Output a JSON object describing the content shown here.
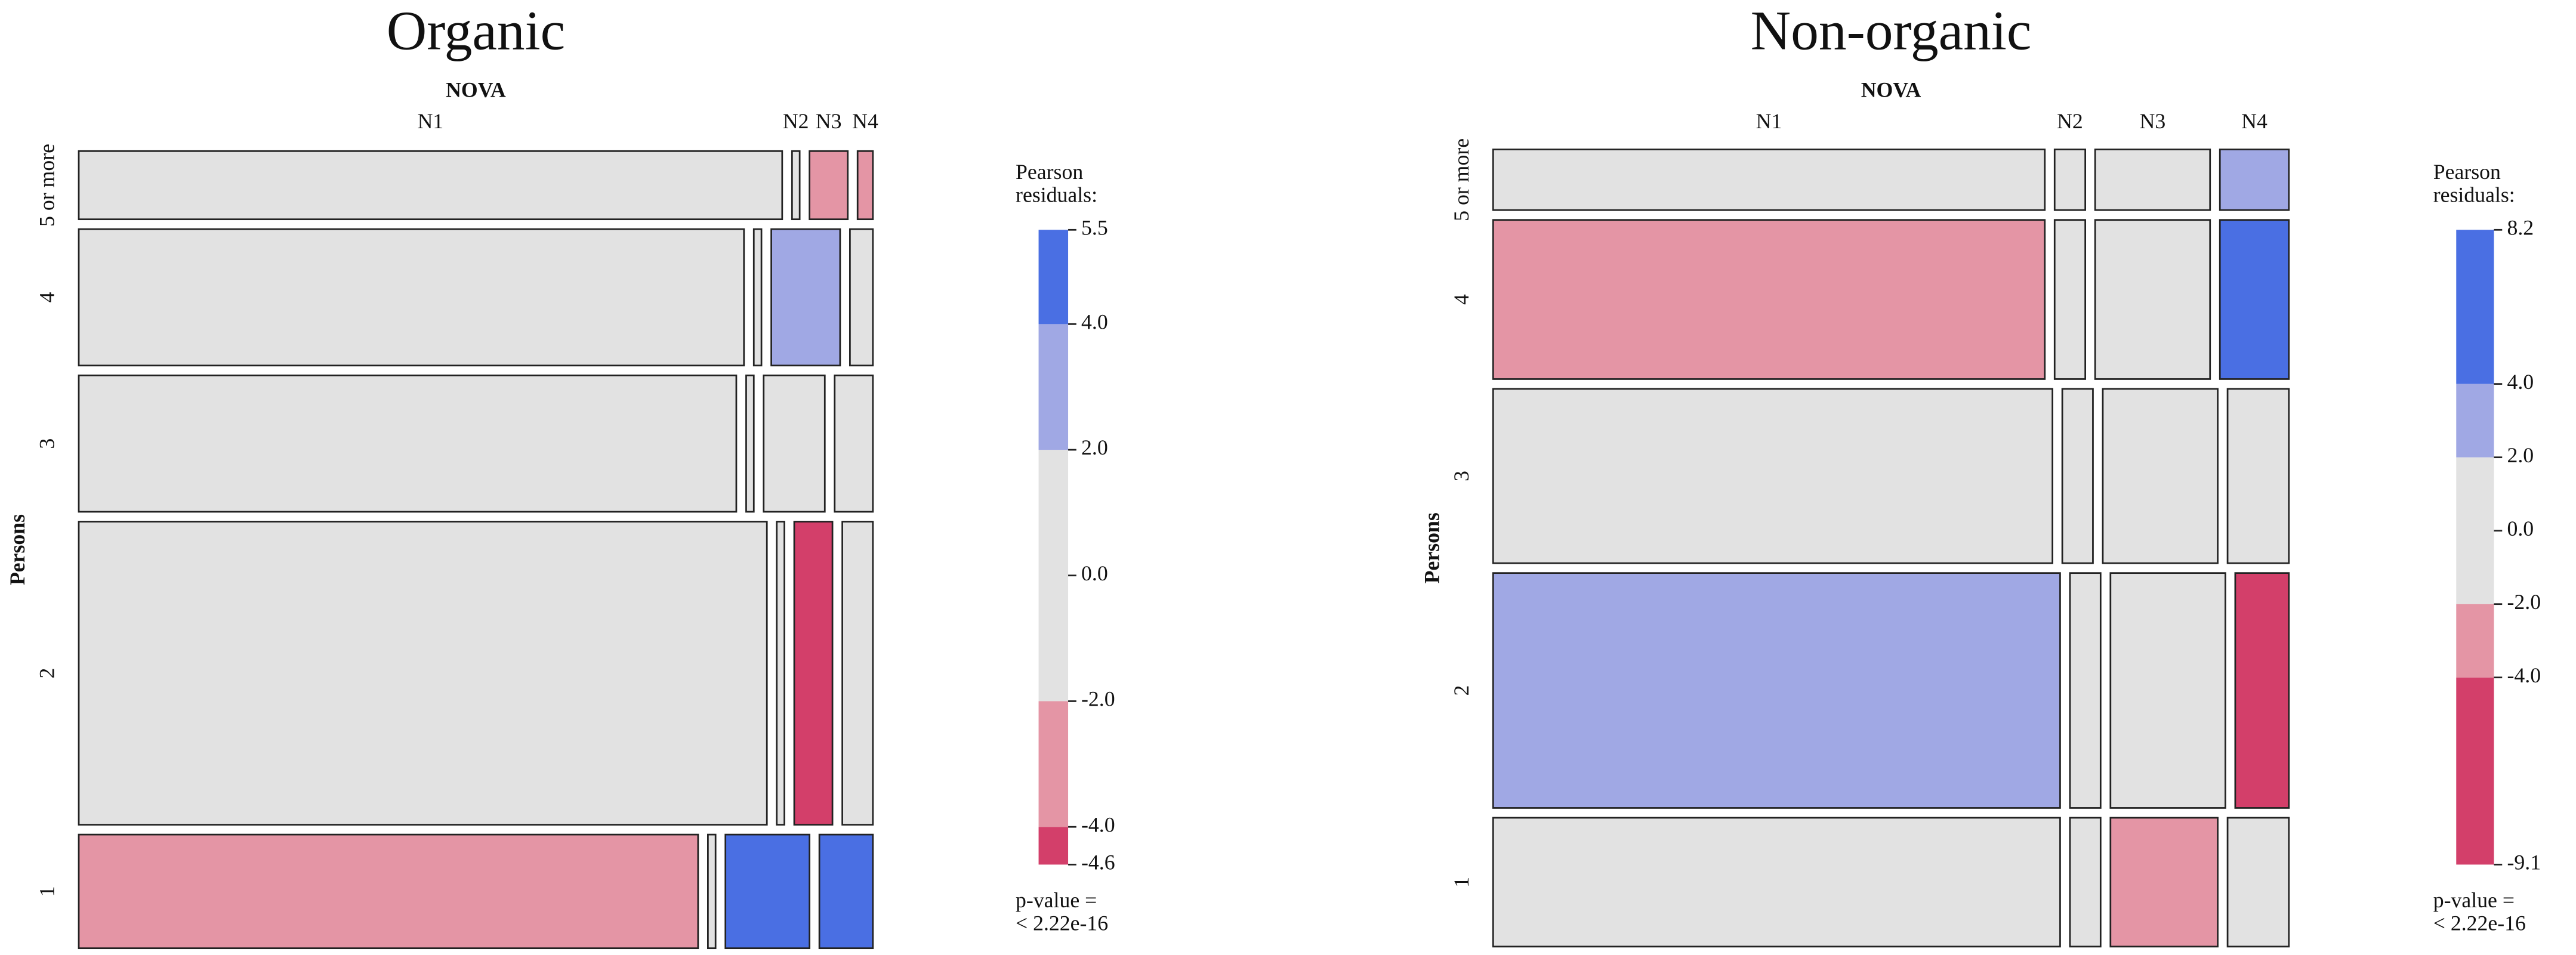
{
  "chart_data": [
    {
      "type": "mosaic",
      "title": "Organic",
      "x_label": "NOVA",
      "y_label": "Persons",
      "columns": [
        "N1",
        "N2",
        "N3",
        "N4"
      ],
      "rows": [
        "5 or more",
        "4",
        "3",
        "2",
        "1"
      ],
      "row_shares": [
        9,
        18,
        18,
        40,
        15
      ],
      "cell_shares": [
        [
          92,
          1,
          5,
          2
        ],
        [
          87,
          1,
          9,
          3
        ],
        [
          86,
          1,
          8,
          5
        ],
        [
          90,
          1,
          5,
          4
        ],
        [
          81,
          1,
          11,
          7
        ]
      ],
      "cell_colors": [
        [
          "#e2e2e2",
          "#e2e2e2",
          "#e495a5",
          "#e495a5"
        ],
        [
          "#e2e2e2",
          "#e2e2e2",
          "#a0a8e4",
          "#e2e2e2"
        ],
        [
          "#e2e2e2",
          "#e2e2e2",
          "#e2e2e2",
          "#e2e2e2"
        ],
        [
          "#e2e2e2",
          "#e2e2e2",
          "#d33f6a",
          "#e2e2e2"
        ],
        [
          "#e495a5",
          "#e2e2e2",
          "#4a6fe3",
          "#4a6fe3"
        ]
      ],
      "legend_title": [
        "Pearson",
        "residuals:"
      ],
      "legend_lim": [
        -4.6,
        5.5
      ],
      "legend_breaks": [
        -4.6,
        -4,
        -2,
        2,
        4,
        5.5
      ],
      "legend_colors": [
        "#d33f6a",
        "#e495a5",
        "#e2e2e2",
        "#a0a8e4",
        "#4a6fe3"
      ],
      "legend_ticks": [
        5.5,
        {
          "value": 4,
          "label": "4.0"
        },
        {
          "value": 2,
          "label": "2.0"
        },
        {
          "value": 0,
          "label": "0.0"
        },
        {
          "value": -2,
          "label": "-2.0"
        },
        {
          "value": -4,
          "label": "-4.0"
        },
        -4.6
      ],
      "note": [
        "p-value =",
        "< 2.22e-16"
      ]
    },
    {
      "type": "mosaic",
      "title": "Non-organic",
      "x_label": "NOVA",
      "y_label": "Persons",
      "columns": [
        "N1",
        "N2",
        "N3",
        "N4"
      ],
      "rows": [
        "5 or more",
        "4",
        "3",
        "2",
        "1"
      ],
      "row_shares": [
        8,
        21,
        23,
        31,
        17
      ],
      "cell_shares": [
        [
          72,
          4,
          15,
          9
        ],
        [
          72,
          4,
          15,
          9
        ],
        [
          73,
          4,
          15,
          8
        ],
        [
          74,
          4,
          15,
          7
        ],
        [
          74,
          4,
          14,
          8
        ]
      ],
      "cell_colors": [
        [
          "#e2e2e2",
          "#e2e2e2",
          "#e2e2e2",
          "#a0a8e4"
        ],
        [
          "#e495a5",
          "#e2e2e2",
          "#e2e2e2",
          "#4a6fe3"
        ],
        [
          "#e2e2e2",
          "#e2e2e2",
          "#e2e2e2",
          "#e2e2e2"
        ],
        [
          "#a0a8e4",
          "#e2e2e2",
          "#e2e2e2",
          "#d33f6a"
        ],
        [
          "#e2e2e2",
          "#e2e2e2",
          "#e495a5",
          "#e2e2e2"
        ]
      ],
      "legend_title": [
        "Pearson",
        "residuals:"
      ],
      "legend_lim": [
        -9.1,
        8.2
      ],
      "legend_breaks": [
        -9.1,
        -4,
        -2,
        2,
        4,
        8.2
      ],
      "legend_colors": [
        "#d33f6a",
        "#e495a5",
        "#e2e2e2",
        "#a0a8e4",
        "#4a6fe3"
      ],
      "legend_ticks": [
        8.2,
        {
          "value": 4,
          "label": "4.0"
        },
        {
          "value": 2,
          "label": "2.0"
        },
        {
          "value": 0,
          "label": "0.0"
        },
        {
          "value": -2,
          "label": "-2.0"
        },
        {
          "value": -4,
          "label": "-4.0"
        },
        -9.1
      ],
      "note": [
        "p-value =",
        "< 2.22e-16"
      ]
    }
  ]
}
